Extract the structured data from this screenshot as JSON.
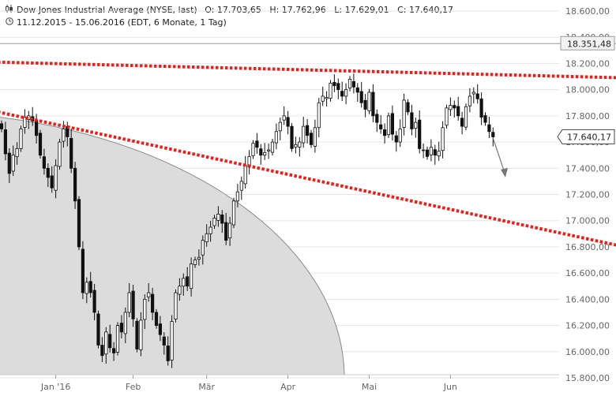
{
  "header": {
    "line1_icon": "candlestick-chart-icon",
    "title": "Dow Jones Industrial Average (NYSE, last)",
    "ohlc": "O: 17.703,65   H: 17.762,96   L: 17.629,01   C: 17.640,17",
    "line2_icon": "clock-icon",
    "range": "11.12.2015 - 15.06.2016 (EDT, 6 Monate, 1 Tag)"
  },
  "colors": {
    "up": "#ffffff",
    "down": "#111111",
    "wick": "#111111",
    "trendline": "#e8201b",
    "shade": "#dcdcdc",
    "grid": "#e6e6e6",
    "arrow": "#777777"
  },
  "chart_data": {
    "type": "candlestick",
    "ylim": [
      15800,
      18600
    ],
    "yticks": [
      {
        "value": 18600,
        "label": "18.600,00"
      },
      {
        "value": 18400,
        "label": "18.400,00"
      },
      {
        "value": 18200,
        "label": "18.200,00"
      },
      {
        "value": 18000,
        "label": "18.000,00"
      },
      {
        "value": 17800,
        "label": "17.800,00"
      },
      {
        "value": 17600,
        "label": "17.600,00"
      },
      {
        "value": 17400,
        "label": "17.400,00"
      },
      {
        "value": 17200,
        "label": "17.200,00"
      },
      {
        "value": 17000,
        "label": "17.000,00"
      },
      {
        "value": 16800,
        "label": "16.800,00"
      },
      {
        "value": 16600,
        "label": "16.600,00"
      },
      {
        "value": 16400,
        "label": "16.400,00"
      },
      {
        "value": 16200,
        "label": "16.200,00"
      },
      {
        "value": 16000,
        "label": "16.000,00"
      },
      {
        "value": 15800,
        "label": "15.800,00"
      }
    ],
    "month_labels": [
      {
        "label": "Jan '16",
        "index": 14
      },
      {
        "label": "Feb",
        "index": 34
      },
      {
        "label": "Mär",
        "index": 53
      },
      {
        "label": "Apr",
        "index": 74
      },
      {
        "label": "Mai",
        "index": 95
      },
      {
        "label": "Jun",
        "index": 116
      }
    ],
    "reference_line": {
      "value": 18351.48,
      "label": "18.351,48"
    },
    "last_price": {
      "value": 17640.17,
      "label": "17.640,17"
    },
    "trendlines": [
      {
        "from": {
          "index": -1,
          "value": 18210
        },
        "to": {
          "index": 161,
          "value": 18090
        }
      },
      {
        "from": {
          "index": -1,
          "value": 17830
        },
        "to": {
          "index": 161,
          "value": 16800
        }
      }
    ],
    "forecast_arrow": {
      "from": {
        "index": 127,
        "value": 17630
      },
      "to": {
        "index": 130,
        "value": 17330
      }
    },
    "closes": [
      17700,
      17510,
      17360,
      17500,
      17550,
      17700,
      17790,
      17800,
      17760,
      17650,
      17500,
      17400,
      17330,
      17250,
      17420,
      17600,
      17700,
      17640,
      17400,
      17150,
      16800,
      16450,
      16530,
      16450,
      16300,
      16050,
      15970,
      16150,
      16030,
      15990,
      16200,
      16150,
      16300,
      16450,
      16250,
      16020,
      16240,
      16400,
      16450,
      16300,
      16200,
      16130,
      16050,
      15930,
      16230,
      16450,
      16500,
      16560,
      16500,
      16670,
      16700,
      16720,
      16850,
      16900,
      16950,
      17020,
      17050,
      16980,
      16850,
      16980,
      17150,
      17220,
      17300,
      17420,
      17490,
      17590,
      17560,
      17500,
      17520,
      17540,
      17600,
      17680,
      17750,
      17800,
      17720,
      17550,
      17580,
      17600,
      17720,
      17650,
      17580,
      17710,
      17900,
      17950,
      17940,
      18050,
      18030,
      18000,
      17950,
      18000,
      18080,
      18020,
      17980,
      17900,
      17850,
      17980,
      17800,
      17750,
      17700,
      17650,
      17800,
      17660,
      17600,
      17700,
      17920,
      17830,
      17700,
      17750,
      17550,
      17540,
      17490,
      17560,
      17500,
      17530,
      17710,
      17860,
      17880,
      17860,
      17800,
      17720,
      17870,
      17950,
      17980,
      17930,
      17790,
      17750,
      17680,
      17640
    ]
  }
}
